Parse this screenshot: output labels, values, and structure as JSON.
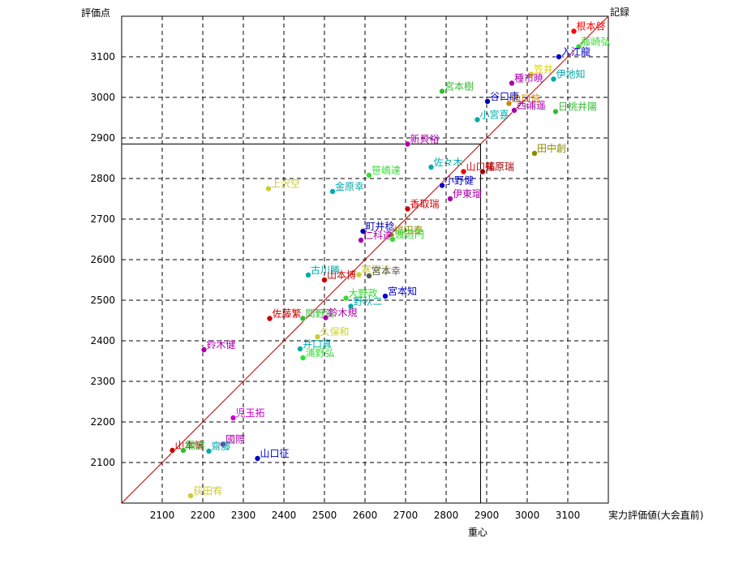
{
  "chart_data": {
    "type": "scatter",
    "title": "",
    "xlabel": "実力評価値(大会直前)",
    "ylabel": "評価点",
    "diagonal_label": "記録",
    "center_label": "重心",
    "xlim": [
      2000,
      3200
    ],
    "ylim": [
      2000,
      3200
    ],
    "x_ticks": [
      2100,
      2200,
      2300,
      2400,
      2500,
      2600,
      2700,
      2800,
      2900,
      3000,
      3100
    ],
    "y_ticks": [
      2100,
      2200,
      2300,
      2400,
      2500,
      2600,
      2700,
      2800,
      2900,
      3000,
      3100
    ],
    "center": {
      "x": 2885,
      "y": 2885
    },
    "diagonal_color": "#c00000",
    "points": [
      {
        "label": "根本啓",
        "x": 3115,
        "y": 3163,
        "color": "#ff0000"
      },
      {
        "label": "藤崎弘",
        "x": 3127,
        "y": 3125,
        "color": "#33dd33"
      },
      {
        "label": "入江龍",
        "x": 3078,
        "y": 3100,
        "color": "#0000cc"
      },
      {
        "label": "笠井",
        "x": 3010,
        "y": 3057,
        "color": "#ddcc00"
      },
      {
        "label": "伊地知",
        "x": 3065,
        "y": 3045,
        "color": "#00aaaa"
      },
      {
        "label": "種市暁",
        "x": 2962,
        "y": 3035,
        "color": "#aa00aa"
      },
      {
        "label": "宮本樹",
        "x": 2790,
        "y": 3015,
        "color": "#33bb33"
      },
      {
        "label": "谷口康",
        "x": 2902,
        "y": 2990,
        "color": "#0000aa"
      },
      {
        "label": "山口信",
        "x": 2955,
        "y": 2985,
        "color": "#cc8800"
      },
      {
        "label": "西浦遥",
        "x": 2968,
        "y": 2968,
        "color": "#aa00aa"
      },
      {
        "label": "日桃井陽",
        "x": 3070,
        "y": 2965,
        "color": "#33bb33"
      },
      {
        "label": "小宮喜",
        "x": 2877,
        "y": 2945,
        "color": "#00aaaa"
      },
      {
        "label": "新貝裕",
        "x": 2705,
        "y": 2885,
        "color": "#aa00aa"
      },
      {
        "label": "田中創",
        "x": 3018,
        "y": 2862,
        "color": "#888800"
      },
      {
        "label": "佐々木",
        "x": 2763,
        "y": 2828,
        "color": "#00aaaa"
      },
      {
        "label": "山口祐",
        "x": 2843,
        "y": 2817,
        "color": "#ee0000"
      },
      {
        "label": "篠原瑞",
        "x": 2890,
        "y": 2817,
        "color": "#990000"
      },
      {
        "label": "笹嶋達",
        "x": 2610,
        "y": 2808,
        "color": "#33dd33"
      },
      {
        "label": "小野健",
        "x": 2790,
        "y": 2783,
        "color": "#0000cc"
      },
      {
        "label": "上沢空",
        "x": 2362,
        "y": 2775,
        "color": "#cccc33"
      },
      {
        "label": "金原幸",
        "x": 2520,
        "y": 2768,
        "color": "#00aaaa"
      },
      {
        "label": "伊東瑠",
        "x": 2810,
        "y": 2750,
        "color": "#aa00aa"
      },
      {
        "label": "香取瑞",
        "x": 2705,
        "y": 2725,
        "color": "#cc0000"
      },
      {
        "label": "町井稔",
        "x": 2595,
        "y": 2670,
        "color": "#0000aa"
      },
      {
        "label": "福田泰",
        "x": 2665,
        "y": 2660,
        "color": "#888800"
      },
      {
        "label": "仁科達",
        "x": 2590,
        "y": 2648,
        "color": "#aa00aa"
      },
      {
        "label": "渡辺円",
        "x": 2668,
        "y": 2650,
        "color": "#33dd33"
      },
      {
        "label": "古川勝",
        "x": 2460,
        "y": 2562,
        "color": "#00aaaa"
      },
      {
        "label": "寒河江",
        "x": 2585,
        "y": 2563,
        "color": "#cccc33"
      },
      {
        "label": "宮本幸",
        "x": 2610,
        "y": 2560,
        "color": "#555555"
      },
      {
        "label": "山本博",
        "x": 2500,
        "y": 2550,
        "color": "#cc0000"
      },
      {
        "label": "大野政",
        "x": 2553,
        "y": 2505,
        "color": "#33dd33"
      },
      {
        "label": "宮本知",
        "x": 2650,
        "y": 2510,
        "color": "#0000cc"
      },
      {
        "label": "野秋二",
        "x": 2565,
        "y": 2485,
        "color": "#00aaaa"
      },
      {
        "label": "佐藤繁",
        "x": 2365,
        "y": 2455,
        "color": "#cc0000"
      },
      {
        "label": "関野賀",
        "x": 2447,
        "y": 2455,
        "color": "#33bb33"
      },
      {
        "label": "鈴木規",
        "x": 2503,
        "y": 2457,
        "color": "#aa00aa"
      },
      {
        "label": "久保和",
        "x": 2483,
        "y": 2410,
        "color": "#cccc33"
      },
      {
        "label": "鈴木健",
        "x": 2203,
        "y": 2378,
        "color": "#aa00aa"
      },
      {
        "label": "井口真",
        "x": 2440,
        "y": 2380,
        "color": "#00aaaa"
      },
      {
        "label": "浦野弘",
        "x": 2447,
        "y": 2358,
        "color": "#33dd33"
      },
      {
        "label": "児玉拓",
        "x": 2275,
        "y": 2210,
        "color": "#cc00cc"
      },
      {
        "label": "國際",
        "x": 2250,
        "y": 2145,
        "color": "#aa00aa"
      },
      {
        "label": "山本慎",
        "x": 2125,
        "y": 2130,
        "color": "#cc0000"
      },
      {
        "label": "陽達",
        "x": 2152,
        "y": 2130,
        "color": "#33bb33"
      },
      {
        "label": "齋藤",
        "x": 2215,
        "y": 2128,
        "color": "#00aaaa"
      },
      {
        "label": "山口征",
        "x": 2335,
        "y": 2110,
        "color": "#0000cc"
      },
      {
        "label": "荻田宥",
        "x": 2170,
        "y": 2018,
        "color": "#cccc33"
      }
    ]
  }
}
